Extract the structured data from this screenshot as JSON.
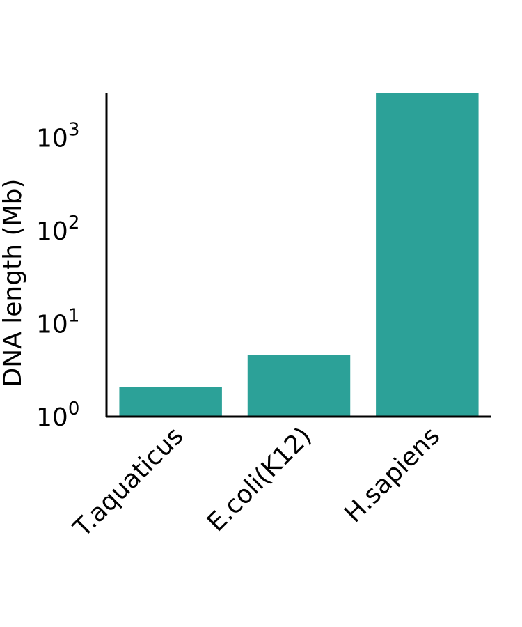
{
  "chart_data": {
    "type": "bar",
    "categories": [
      "T.aquaticus",
      "E.coli(K12)",
      "H.sapiens"
    ],
    "values": [
      2.1,
      4.6,
      3000
    ],
    "title": "",
    "xlabel": "",
    "ylabel": "DNA length (Mb)",
    "yscale": "log",
    "ylim": [
      1,
      3000
    ],
    "yticks": [
      {
        "base": "10",
        "exp": "0"
      },
      {
        "base": "10",
        "exp": "1"
      },
      {
        "base": "10",
        "exp": "2"
      },
      {
        "base": "10",
        "exp": "3"
      }
    ],
    "bar_color": "#2ca198",
    "grid": false,
    "legend": "none"
  }
}
